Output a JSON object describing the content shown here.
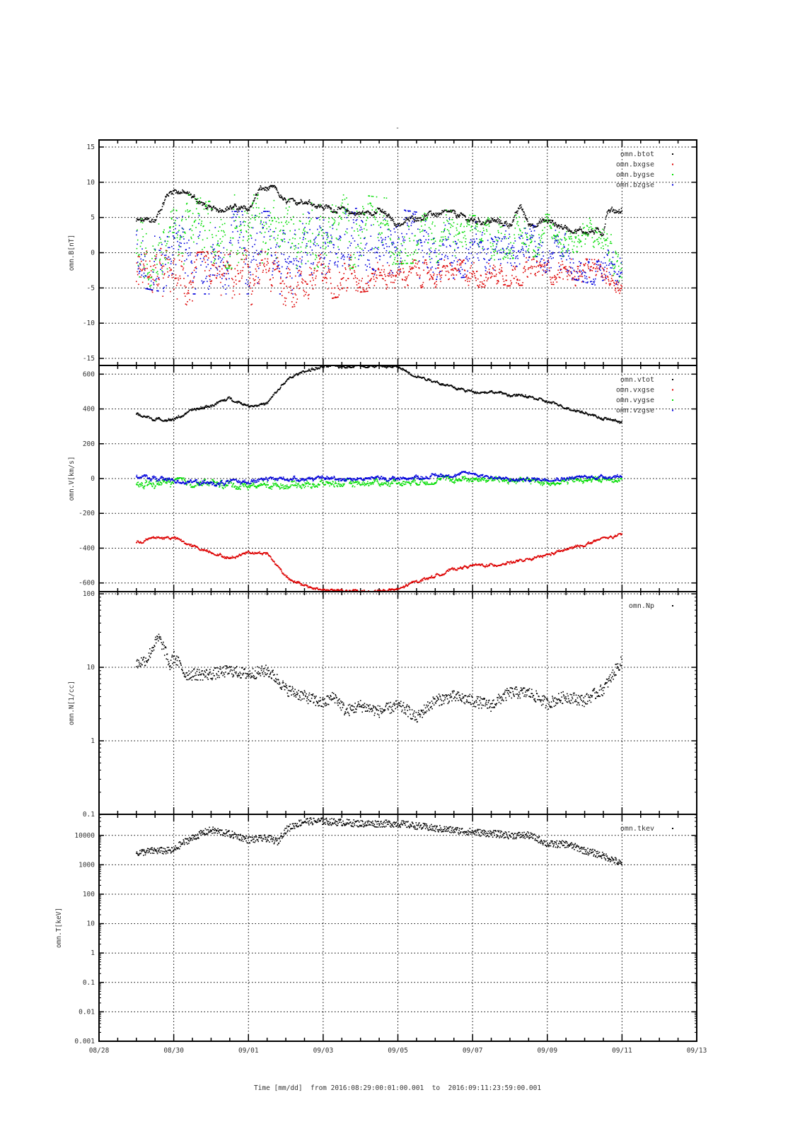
{
  "title": "-",
  "xlabel": "Time [mm/dd]  from 2016:08:29:00:01:00.001  to  2016:09:11:23:59:00.001",
  "chart_data": [
    {
      "type": "scatter",
      "ylabel": "omn.B[nT]",
      "scale": "linear",
      "ylim": [
        -16,
        16
      ],
      "yticks": [
        "15",
        "10",
        "5",
        "0",
        "-5",
        "-10",
        "-15"
      ],
      "ytick_values": [
        15,
        10,
        5,
        0,
        -5,
        -10,
        -15
      ],
      "series": [
        {
          "name": "omn.btot",
          "color": "#000000",
          "keys": [
            [
              1,
              4.5
            ],
            [
              1.5,
              4.5
            ],
            [
              1.8,
              8
            ],
            [
              2,
              9
            ],
            [
              2.5,
              8
            ],
            [
              3,
              6
            ],
            [
              3.5,
              6.5
            ],
            [
              4,
              6
            ],
            [
              4.3,
              9
            ],
            [
              4.7,
              9
            ],
            [
              5,
              7
            ],
            [
              5.5,
              7.5
            ],
            [
              6,
              6.5
            ],
            [
              6.5,
              6
            ],
            [
              7,
              5.5
            ],
            [
              7.5,
              6
            ],
            [
              8,
              4
            ],
            [
              8.5,
              5
            ],
            [
              9,
              5.5
            ],
            [
              9.5,
              5.5
            ],
            [
              10,
              4.5
            ],
            [
              10.5,
              4.5
            ],
            [
              11,
              4
            ],
            [
              11.3,
              6.5
            ],
            [
              11.5,
              4
            ],
            [
              12,
              4.5
            ],
            [
              12.5,
              3.5
            ],
            [
              13,
              3
            ],
            [
              13.5,
              3
            ],
            [
              13.6,
              6
            ],
            [
              14,
              6
            ]
          ],
          "spread": [
            [
              1,
              0.4
            ],
            [
              14,
              0.4
            ]
          ]
        },
        {
          "name": "omn.bxgse",
          "color": "#dd0000",
          "keys": [
            [
              1,
              -2
            ],
            [
              2,
              -4
            ],
            [
              4,
              -3.5
            ],
            [
              5,
              -4
            ],
            [
              7,
              -3
            ],
            [
              10,
              -3
            ],
            [
              12,
              -2.5
            ],
            [
              13.5,
              -3
            ],
            [
              14,
              -4
            ]
          ],
          "spread": [
            [
              1,
              3
            ],
            [
              5,
              3
            ],
            [
              8,
              1.5
            ],
            [
              14,
              1.5
            ]
          ]
        },
        {
          "name": "omn.bygse",
          "color": "#00dd00",
          "keys": [
            [
              1,
              -1
            ],
            [
              2,
              3
            ],
            [
              4,
              3
            ],
            [
              6,
              3
            ],
            [
              8,
              3
            ],
            [
              10,
              2
            ],
            [
              12,
              2.5
            ],
            [
              13.5,
              2
            ],
            [
              14,
              -3
            ]
          ],
          "spread": [
            [
              1,
              4
            ],
            [
              7,
              4
            ],
            [
              10,
              2.5
            ],
            [
              14,
              2
            ]
          ]
        },
        {
          "name": "omn.bzgse",
          "color": "#0000dd",
          "keys": [
            [
              1,
              1
            ],
            [
              2,
              0
            ],
            [
              4,
              0
            ],
            [
              6,
              0
            ],
            [
              8,
              1
            ],
            [
              10,
              0.5
            ],
            [
              12,
              0.5
            ],
            [
              14,
              -3
            ]
          ],
          "spread": [
            [
              1,
              4.5
            ],
            [
              7,
              4.5
            ],
            [
              10,
              3
            ],
            [
              14,
              2
            ]
          ]
        }
      ],
      "xticks": [
        "08/28",
        "08/30",
        "09/01",
        "09/03",
        "09/05",
        "09/07",
        "09/09",
        "09/11",
        "09/13"
      ]
    },
    {
      "type": "scatter",
      "ylabel": "omn.V[km/s]",
      "scale": "linear",
      "ylim": [
        -650,
        650
      ],
      "yticks": [
        "600",
        "400",
        "200",
        "0",
        "-200",
        "-400",
        "-600"
      ],
      "ytick_values": [
        600,
        400,
        200,
        0,
        -200,
        -400,
        -600
      ],
      "series": [
        {
          "name": "omn.vtot",
          "color": "#000000",
          "keys": [
            [
              1,
              370
            ],
            [
              1.5,
              340
            ],
            [
              2,
              340
            ],
            [
              2.5,
              390
            ],
            [
              3,
              420
            ],
            [
              3.5,
              460
            ],
            [
              4,
              420
            ],
            [
              4.5,
              430
            ],
            [
              5,
              560
            ],
            [
              5.5,
              620
            ],
            [
              6,
              640
            ],
            [
              7,
              650
            ],
            [
              8,
              640
            ],
            [
              8.5,
              590
            ],
            [
              9,
              560
            ],
            [
              9.5,
              520
            ],
            [
              10,
              500
            ],
            [
              10.5,
              500
            ],
            [
              11,
              480
            ],
            [
              11.5,
              470
            ],
            [
              12,
              440
            ],
            [
              12.5,
              410
            ],
            [
              13,
              380
            ],
            [
              13.5,
              345
            ],
            [
              14,
              325
            ]
          ],
          "spread": [
            [
              1,
              8
            ],
            [
              14,
              8
            ]
          ]
        },
        {
          "name": "omn.vxgse",
          "color": "#dd0000",
          "keys": [
            [
              1,
              -370
            ],
            [
              1.5,
              -340
            ],
            [
              2,
              -340
            ],
            [
              2.5,
              -390
            ],
            [
              3,
              -420
            ],
            [
              3.5,
              -460
            ],
            [
              4,
              -420
            ],
            [
              4.5,
              -430
            ],
            [
              5,
              -560
            ],
            [
              5.5,
              -620
            ],
            [
              6,
              -640
            ],
            [
              7,
              -650
            ],
            [
              8,
              -640
            ],
            [
              8.5,
              -590
            ],
            [
              9,
              -560
            ],
            [
              9.5,
              -520
            ],
            [
              10,
              -500
            ],
            [
              10.5,
              -500
            ],
            [
              11,
              -480
            ],
            [
              11.5,
              -470
            ],
            [
              12,
              -440
            ],
            [
              12.5,
              -410
            ],
            [
              13,
              -380
            ],
            [
              13.5,
              -345
            ],
            [
              14,
              -325
            ]
          ],
          "spread": [
            [
              1,
              8
            ],
            [
              14,
              8
            ]
          ]
        },
        {
          "name": "omn.vygse",
          "color": "#00dd00",
          "keys": [
            [
              1,
              -40
            ],
            [
              2,
              -20
            ],
            [
              4,
              -40
            ],
            [
              6,
              -30
            ],
            [
              8,
              -20
            ],
            [
              10,
              0
            ],
            [
              12,
              -20
            ],
            [
              14,
              0
            ]
          ],
          "spread": [
            [
              1,
              20
            ],
            [
              14,
              15
            ]
          ]
        },
        {
          "name": "omn.vzgse",
          "color": "#0000dd",
          "keys": [
            [
              1,
              10
            ],
            [
              2,
              -10
            ],
            [
              3,
              -30
            ],
            [
              5,
              0
            ],
            [
              8,
              0
            ],
            [
              10,
              30
            ],
            [
              11,
              -10
            ],
            [
              14,
              15
            ]
          ],
          "spread": [
            [
              1,
              12
            ],
            [
              14,
              10
            ]
          ]
        }
      ],
      "xticks": [
        "08/28",
        "08/30",
        "09/01",
        "09/03",
        "09/05",
        "09/07",
        "09/09",
        "09/11",
        "09/13"
      ]
    },
    {
      "type": "scatter",
      "ylabel": "omn.N[1/cc]",
      "scale": "log",
      "ylim": [
        0.1,
        107
      ],
      "yticks": [
        "100",
        "10",
        "1",
        "0.1"
      ],
      "ytick_values": [
        100,
        10,
        1,
        0.1
      ],
      "series": [
        {
          "name": "omn.Np",
          "color": "#000000",
          "keys": [
            [
              1,
              11
            ],
            [
              1.3,
              13
            ],
            [
              1.6,
              25
            ],
            [
              1.9,
              10
            ],
            [
              2,
              14
            ],
            [
              2.3,
              8
            ],
            [
              3,
              8
            ],
            [
              3.5,
              9
            ],
            [
              4,
              8
            ],
            [
              4.5,
              9
            ],
            [
              5,
              5
            ],
            [
              5.5,
              4
            ],
            [
              6,
              3.2
            ],
            [
              6.3,
              4
            ],
            [
              6.6,
              2.5
            ],
            [
              7,
              3
            ],
            [
              7.5,
              2.5
            ],
            [
              8,
              3
            ],
            [
              8.3,
              2.5
            ],
            [
              8.5,
              2
            ],
            [
              9,
              3.5
            ],
            [
              9.5,
              4
            ],
            [
              10,
              3.5
            ],
            [
              10.5,
              3
            ],
            [
              11,
              4.5
            ],
            [
              11.5,
              4.5
            ],
            [
              12,
              3.2
            ],
            [
              12.5,
              4
            ],
            [
              13,
              3.5
            ],
            [
              13.5,
              5
            ],
            [
              13.7,
              7
            ],
            [
              14,
              12
            ]
          ],
          "spread": [
            [
              1,
              0.08
            ],
            [
              14,
              0.08
            ]
          ]
        }
      ],
      "xticks": [
        "08/28",
        "08/30",
        "09/01",
        "09/03",
        "09/05",
        "09/07",
        "09/09",
        "09/11",
        "09/13"
      ]
    },
    {
      "type": "scatter",
      "ylabel": "omn.T[keV]",
      "scale": "log",
      "ylim": [
        0.001,
        52000
      ],
      "yticks": [
        "10000",
        "1000",
        "100",
        "10",
        "1",
        "0.1",
        "0.01",
        "0.001"
      ],
      "ytick_values": [
        10000,
        1000,
        100,
        10,
        1,
        0.1,
        0.01,
        0.001
      ],
      "series": [
        {
          "name": "omn.tkev",
          "color": "#000000",
          "keys": [
            [
              1,
              2500
            ],
            [
              1.5,
              3000
            ],
            [
              2,
              3000
            ],
            [
              2.5,
              8000
            ],
            [
              3,
              15000
            ],
            [
              4,
              7000
            ],
            [
              4.5,
              8000
            ],
            [
              4.8,
              6000
            ],
            [
              5,
              15000
            ],
            [
              5.5,
              30000
            ],
            [
              6,
              30000
            ],
            [
              7,
              25000
            ],
            [
              8,
              25000
            ],
            [
              9,
              17000
            ],
            [
              10,
              13000
            ],
            [
              11,
              10000
            ],
            [
              11.5,
              10000
            ],
            [
              12,
              5000
            ],
            [
              12.5,
              5000
            ],
            [
              13,
              3000
            ],
            [
              13.5,
              2000
            ],
            [
              14,
              1000
            ]
          ],
          "spread": [
            [
              1,
              0.12
            ],
            [
              14,
              0.12
            ]
          ]
        }
      ],
      "xticks": [
        "08/28",
        "08/30",
        "09/01",
        "09/03",
        "09/05",
        "09/07",
        "09/09",
        "09/11",
        "09/13"
      ]
    }
  ]
}
